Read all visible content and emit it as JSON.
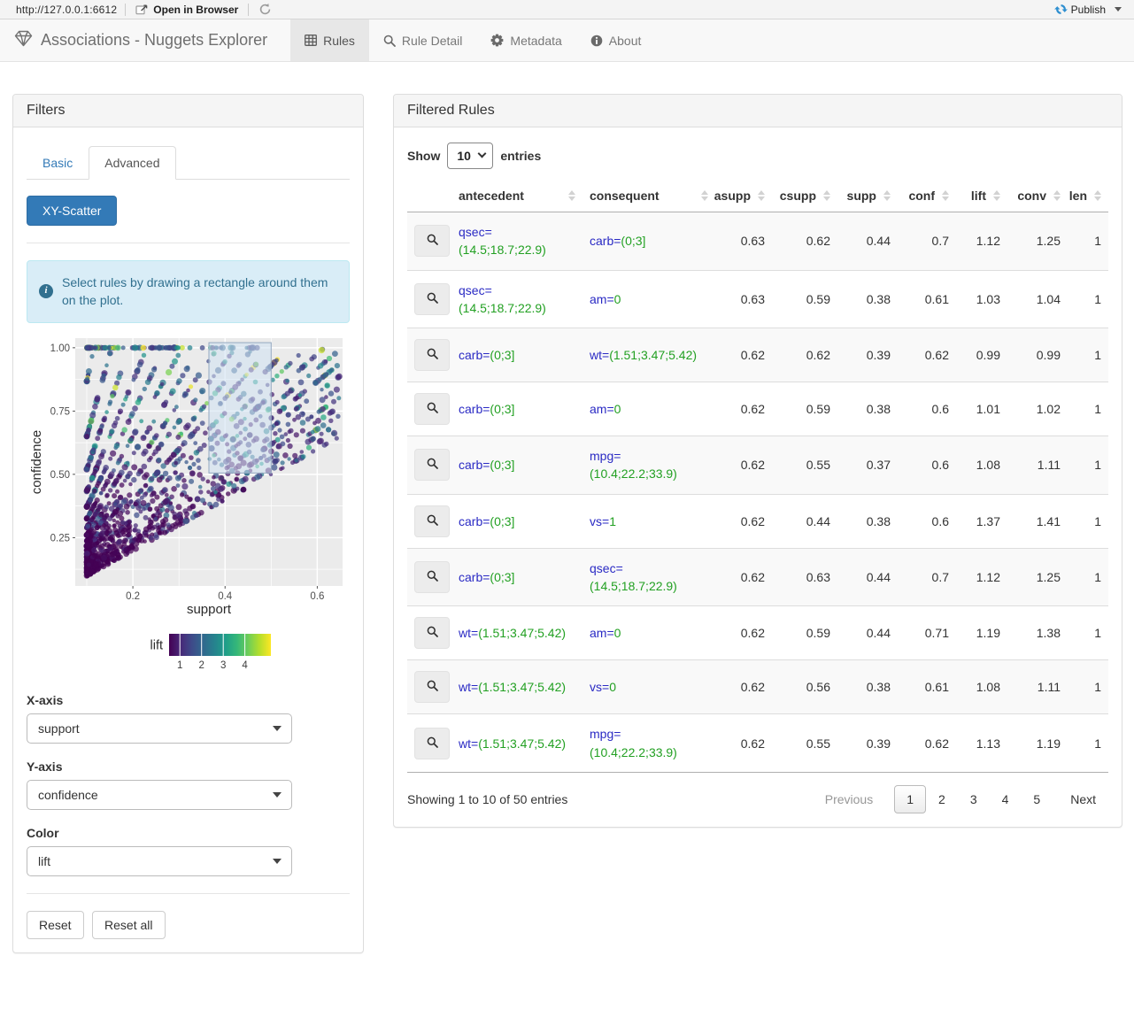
{
  "toolbar": {
    "url": "http://127.0.0.1:6612",
    "open_in_browser": "Open in Browser",
    "publish": "Publish"
  },
  "navbar": {
    "brand": "Associations - Nuggets Explorer",
    "tabs": [
      {
        "label": "Rules",
        "icon": "table-icon",
        "active": true
      },
      {
        "label": "Rule Detail",
        "icon": "search-icon",
        "active": false
      },
      {
        "label": "Metadata",
        "icon": "gear-icon",
        "active": false
      },
      {
        "label": "About",
        "icon": "info-icon",
        "active": false
      }
    ]
  },
  "filters": {
    "title": "Filters",
    "tabs": [
      {
        "label": "Basic",
        "active": false
      },
      {
        "label": "Advanced",
        "active": true
      }
    ],
    "plot_type_button": "XY-Scatter",
    "info_alert": "Select rules by drawing a rectangle around them on the plot.",
    "x_axis": {
      "label": "X-axis",
      "value": "support"
    },
    "y_axis": {
      "label": "Y-axis",
      "value": "confidence"
    },
    "color": {
      "label": "Color",
      "value": "lift"
    },
    "reset_button": "Reset",
    "reset_all_button": "Reset all"
  },
  "chart_data": {
    "type": "scatter",
    "title": "",
    "xlabel": "support",
    "ylabel": "confidence",
    "xlim": [
      0.075,
      0.655
    ],
    "ylim": [
      0.059,
      1.038
    ],
    "x_ticks": [
      0.2,
      0.4,
      0.6
    ],
    "y_ticks": [
      0.25,
      0.5,
      0.75,
      1.0
    ],
    "x_minor_ticks": [
      0.1,
      0.3,
      0.5
    ],
    "y_minor_ticks": [
      0.125,
      0.375,
      0.625,
      0.875
    ],
    "grid": true,
    "panel_background": "#ebebeb",
    "grid_color": "#ffffff",
    "legend": {
      "label": "lift",
      "position": "bottom",
      "ticks": [
        1,
        2,
        3,
        4
      ],
      "domain": [
        0.5,
        5.2
      ],
      "colormap": "viridis",
      "stops": [
        "#440154",
        "#482878",
        "#3e4a89",
        "#31688e",
        "#26828e",
        "#1f9e89",
        "#35b779",
        "#6ece58",
        "#b5de2b",
        "#fde725"
      ]
    },
    "selection_rect": {
      "x0": 0.365,
      "x1": 0.5,
      "y0": 0.505,
      "y1": 1.02,
      "fill": "#cfe1f2",
      "stroke": "#93a8c0"
    },
    "points_summary": "~1750 association rules forming a dense wedge at support 0.1-0.3 across all confidences, bounded below by conf=supp/asupp diagonals reaching (0.63, 0.63); color = lift, mostly 0.7-1.6 (dark purple/blue/teal) with sparse high-lift green/yellow points",
    "generated_points": {
      "n": 1750,
      "seed": 42,
      "point_alpha": 0.72
    }
  },
  "rules_panel": {
    "title": "Filtered Rules",
    "show_label": "Show",
    "entries_label": "entries",
    "page_size": "10",
    "columns": [
      "antecedent",
      "consequent",
      "asupp",
      "csupp",
      "supp",
      "conf",
      "lift",
      "conv",
      "len"
    ],
    "rows": [
      {
        "antecedent": {
          "name": "qsec=",
          "value": "(14.5;18.7;22.9)"
        },
        "consequent": {
          "name": "carb=",
          "value": "(0;3]"
        },
        "asupp": "0.63",
        "csupp": "0.62",
        "supp": "0.44",
        "conf": "0.7",
        "lift": "1.12",
        "conv": "1.25",
        "len": "1"
      },
      {
        "antecedent": {
          "name": "qsec=",
          "value": "(14.5;18.7;22.9)"
        },
        "consequent": {
          "name": "am=",
          "value": "0"
        },
        "asupp": "0.63",
        "csupp": "0.59",
        "supp": "0.38",
        "conf": "0.61",
        "lift": "1.03",
        "conv": "1.04",
        "len": "1"
      },
      {
        "antecedent": {
          "name": "carb=",
          "value": "(0;3]"
        },
        "consequent": {
          "name": "wt=",
          "value": "(1.51;3.47;5.42)"
        },
        "asupp": "0.62",
        "csupp": "0.62",
        "supp": "0.39",
        "conf": "0.62",
        "lift": "0.99",
        "conv": "0.99",
        "len": "1"
      },
      {
        "antecedent": {
          "name": "carb=",
          "value": "(0;3]"
        },
        "consequent": {
          "name": "am=",
          "value": "0"
        },
        "asupp": "0.62",
        "csupp": "0.59",
        "supp": "0.38",
        "conf": "0.6",
        "lift": "1.01",
        "conv": "1.02",
        "len": "1"
      },
      {
        "antecedent": {
          "name": "carb=",
          "value": "(0;3]"
        },
        "consequent": {
          "name": "mpg=",
          "value": "(10.4;22.2;33.9)"
        },
        "asupp": "0.62",
        "csupp": "0.55",
        "supp": "0.37",
        "conf": "0.6",
        "lift": "1.08",
        "conv": "1.11",
        "len": "1"
      },
      {
        "antecedent": {
          "name": "carb=",
          "value": "(0;3]"
        },
        "consequent": {
          "name": "vs=",
          "value": "1"
        },
        "asupp": "0.62",
        "csupp": "0.44",
        "supp": "0.38",
        "conf": "0.6",
        "lift": "1.37",
        "conv": "1.41",
        "len": "1"
      },
      {
        "antecedent": {
          "name": "carb=",
          "value": "(0;3]"
        },
        "consequent": {
          "name": "qsec=",
          "value": "(14.5;18.7;22.9)"
        },
        "asupp": "0.62",
        "csupp": "0.63",
        "supp": "0.44",
        "conf": "0.7",
        "lift": "1.12",
        "conv": "1.25",
        "len": "1"
      },
      {
        "antecedent": {
          "name": "wt=",
          "value": "(1.51;3.47;5.42)"
        },
        "consequent": {
          "name": "am=",
          "value": "0"
        },
        "asupp": "0.62",
        "csupp": "0.59",
        "supp": "0.44",
        "conf": "0.71",
        "lift": "1.19",
        "conv": "1.38",
        "len": "1"
      },
      {
        "antecedent": {
          "name": "wt=",
          "value": "(1.51;3.47;5.42)"
        },
        "consequent": {
          "name": "vs=",
          "value": "0"
        },
        "asupp": "0.62",
        "csupp": "0.56",
        "supp": "0.38",
        "conf": "0.61",
        "lift": "1.08",
        "conv": "1.11",
        "len": "1"
      },
      {
        "antecedent": {
          "name": "wt=",
          "value": "(1.51;3.47;5.42)"
        },
        "consequent": {
          "name": "mpg=",
          "value": "(10.4;22.2;33.9)"
        },
        "asupp": "0.62",
        "csupp": "0.55",
        "supp": "0.39",
        "conf": "0.62",
        "lift": "1.13",
        "conv": "1.19",
        "len": "1"
      }
    ],
    "footer": {
      "info": "Showing 1 to 10 of 50 entries",
      "previous": "Previous",
      "pages": [
        "1",
        "2",
        "3",
        "4",
        "5"
      ],
      "current_page": "1",
      "next": "Next"
    }
  },
  "colors": {
    "accent_blue": "#337ab7",
    "publish_blue": "#2e8fd0",
    "alert_bg": "#d9edf7",
    "alert_text": "#31708f",
    "rule_name_blue": "#2a2ac4",
    "rule_value_green": "#22a022",
    "navbar_bg": "#f8f8f8",
    "active_tab_bg": "#e7e7e7",
    "panel_header_bg": "#f5f5f5",
    "stripe_row_bg": "#f9f9f9"
  }
}
